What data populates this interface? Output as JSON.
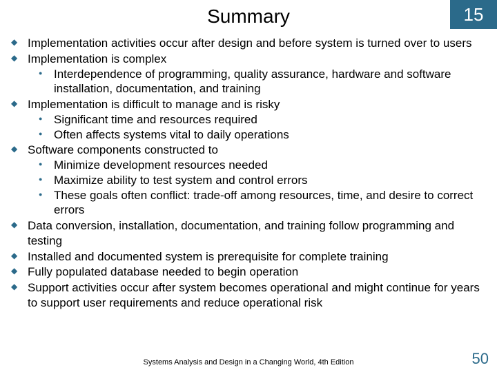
{
  "colors": {
    "chapter_box_bg": "#2b6a8a",
    "chapter_box_text": "#ffffff",
    "bullet_diamond": "#2b6a8a",
    "bullet_circle": "#2b6a8a",
    "page_num": "#2b6a8a",
    "body_text": "#000000",
    "background": "#ffffff"
  },
  "header": {
    "title": "Summary",
    "chapter": "15"
  },
  "bullets": [
    {
      "text": "Implementation activities occur after design and before system is turned over to users",
      "sub": []
    },
    {
      "text": "Implementation is complex",
      "sub": [
        "Interdependence of programming, quality assurance, hardware and software installation, documentation, and training"
      ]
    },
    {
      "text": "Implementation is difficult to manage and is risky",
      "sub": [
        "Significant time and resources required",
        "Often affects systems vital to daily operations"
      ]
    },
    {
      "text": "Software components constructed to",
      "sub": [
        "Minimize development resources needed",
        "Maximize ability to test system and control errors",
        "These goals often conflict: trade-off among resources, time, and desire to correct errors"
      ]
    },
    {
      "text": "Data conversion, installation, documentation, and training follow programming and testing",
      "sub": []
    },
    {
      "text": "Installed and documented system is prerequisite for complete training",
      "sub": []
    },
    {
      "text": "Fully populated database needed to begin operation",
      "sub": []
    },
    {
      "text": "Support activities occur after system becomes operational and might continue for years to support user requirements and reduce operational risk",
      "sub": []
    }
  ],
  "footer": {
    "text": "Systems Analysis and Design in a Changing World, 4th Edition",
    "page": "50"
  }
}
